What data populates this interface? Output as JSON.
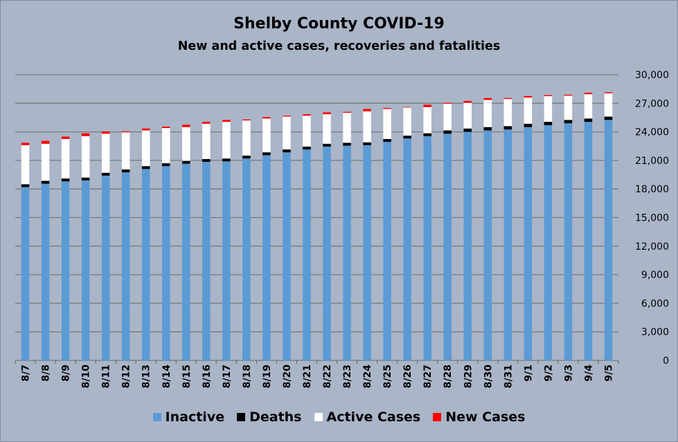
{
  "chart_data": {
    "type": "bar",
    "stacked": true,
    "title": "Shelby County COVID-19",
    "subtitle": "New and active cases, recoveries and fatalities",
    "categories": [
      "8/7",
      "8/8",
      "8/9",
      "8/10",
      "8/11",
      "8/12",
      "8/13",
      "8/14",
      "8/15",
      "8/16",
      "8/17",
      "8/18",
      "8/19",
      "8/20",
      "8/21",
      "8/22",
      "8/23",
      "8/24",
      "8/25",
      "8/26",
      "8/27",
      "8/28",
      "8/29",
      "8/30",
      "8/31",
      "9/1",
      "9/2",
      "9/3",
      "9/4",
      "9/5"
    ],
    "series": [
      {
        "name": "Inactive",
        "color": "#5b9bd5",
        "values": [
          18200,
          18550,
          18800,
          18900,
          19400,
          19750,
          20100,
          20400,
          20650,
          20850,
          20900,
          21200,
          21550,
          21850,
          22150,
          22450,
          22550,
          22600,
          22950,
          23300,
          23550,
          23800,
          24000,
          24150,
          24250,
          24500,
          24700,
          24900,
          25050,
          25250
        ]
      },
      {
        "name": "Deaths",
        "color": "#000000",
        "values": [
          300,
          300,
          300,
          300,
          300,
          300,
          300,
          300,
          300,
          300,
          300,
          300,
          300,
          300,
          300,
          300,
          300,
          300,
          300,
          300,
          300,
          350,
          350,
          350,
          350,
          350,
          350,
          350,
          350,
          350
        ]
      },
      {
        "name": "Active Cases",
        "color": "#ffffff",
        "values": [
          4100,
          3900,
          4150,
          4350,
          4100,
          3900,
          3750,
          3700,
          3550,
          3700,
          3850,
          3700,
          3550,
          3450,
          3250,
          3100,
          3150,
          3250,
          3150,
          2950,
          2750,
          2800,
          2700,
          2850,
          2850,
          2750,
          2700,
          2550,
          2550,
          2450
        ]
      },
      {
        "name": "New Cases",
        "color": "#ff0000",
        "values": [
          250,
          300,
          250,
          300,
          250,
          100,
          200,
          150,
          250,
          200,
          200,
          100,
          150,
          100,
          150,
          200,
          100,
          250,
          100,
          50,
          250,
          100,
          200,
          200,
          100,
          150,
          100,
          100,
          150,
          100
        ]
      }
    ],
    "ylim": [
      0,
      30000
    ],
    "yticks": [
      0,
      3000,
      6000,
      9000,
      12000,
      15000,
      18000,
      21000,
      24000,
      27000,
      30000
    ],
    "ytick_labels": [
      "0",
      "3,000",
      "6,000",
      "9,000",
      "12,000",
      "15,000",
      "18,000",
      "21,000",
      "24,000",
      "27,000",
      "30,000"
    ],
    "ygrid": true,
    "yaxis_side": "right",
    "legend_position": "bottom"
  }
}
